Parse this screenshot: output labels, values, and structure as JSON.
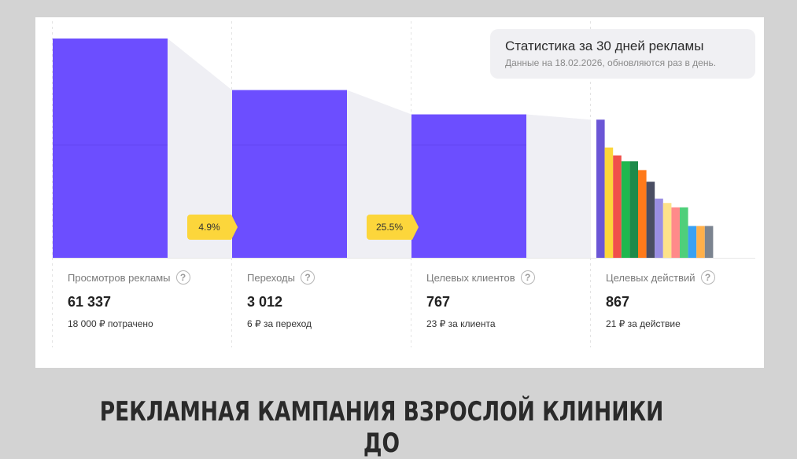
{
  "stats": {
    "title": "Статистика за 30 дней рекламы",
    "subtitle": "Данные на 18.02.2026, обновляются раз в день."
  },
  "columns": [
    {
      "label": "Просмотров рекламы",
      "value": "61 337",
      "sub": "18 000 ₽ потрачено"
    },
    {
      "label": "Переходы",
      "value": "3 012",
      "sub": "6 ₽ за переход"
    },
    {
      "label": "Целевых клиентов",
      "value": "767",
      "sub": "23 ₽ за клиента"
    },
    {
      "label": "Целевых действий",
      "value": "867",
      "sub": "21 ₽ за действие"
    }
  ],
  "conversions": [
    "4.9%",
    "25.5%"
  ],
  "caption": "РЕКЛАМНАЯ КАМПАНИЯ ВЗРОСЛОЙ КЛИНИКИ ДО",
  "chart_data": {
    "type": "bar",
    "categories": [
      "Просмотров рекламы",
      "Переходы",
      "Целевых клиентов",
      "Целевых действий"
    ],
    "bar_levels": [
      1.0,
      0.765,
      0.654,
      0.63
    ],
    "bar_color": "#6c4eff",
    "breakdown_levels": [
      0.63,
      0.503,
      0.467,
      0.44,
      0.44,
      0.4,
      0.347,
      0.27,
      0.25,
      0.23,
      0.23,
      0.145,
      0.145,
      0.145
    ],
    "breakdown_colors": [
      "#6b56d6",
      "#fcd63b",
      "#f0504a",
      "#1fb84e",
      "#1c8a4a",
      "#ff7a1a",
      "#4a4e63",
      "#9a8ee3",
      "#fde28a",
      "#ff8a8a",
      "#4fcf7a",
      "#3aa1f2",
      "#ffb04a",
      "#7b8490"
    ]
  }
}
